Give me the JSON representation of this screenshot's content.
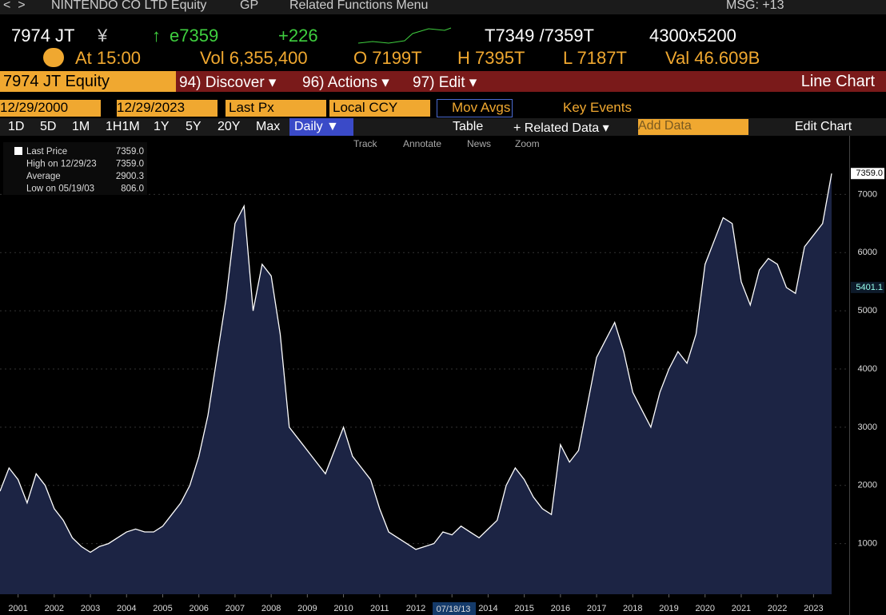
{
  "header": {
    "security": "NINTENDO CO LTD Equity",
    "function": "GP",
    "menu": "Related Functions Menu",
    "messages": "MSG: +13"
  },
  "quote": {
    "ticker": "7974 JT",
    "currency": "¥",
    "last": "e7359",
    "change": "+226",
    "bid_ask": "T7349 /7359T",
    "size": "4300x5200",
    "time": "At 15:00",
    "volume": "Vol 6,355,400",
    "open": "O 7199T",
    "high": "H 7395T",
    "low": "L 7187T",
    "value": "Val 46.609B"
  },
  "toolbar": {
    "equity": "7974 JT Equity",
    "discover": "94) Discover ▾",
    "actions": "96) Actions ▾",
    "edit": "97) Edit ▾",
    "chart_kind": "Line Chart",
    "start_date": "12/29/2000",
    "end_date": "12/29/2023",
    "field": "Last Px",
    "currency": "Local CCY",
    "mov_avgs": "Mov Avgs",
    "key_events": "Key Events",
    "periods": [
      "1D",
      "5D",
      "1M",
      "1H1M",
      "1Y",
      "5Y",
      "20Y",
      "Max"
    ],
    "frequency": "Daily ▼",
    "table": "Table",
    "related": "+ Related Data ▾",
    "add_data": "Add Data",
    "edit_chart": "Edit Chart",
    "tools": [
      "Track",
      "Annotate",
      "News",
      "Zoom"
    ]
  },
  "chart_data": {
    "type": "line",
    "legend_rows": [
      {
        "label": "Last Price",
        "value": "7359.0"
      },
      {
        "label": "High on 12/29/23",
        "value": "7359.0"
      },
      {
        "label": "Average",
        "value": "2900.3"
      },
      {
        "label": "Low on 05/19/03",
        "value": "806.0"
      }
    ],
    "x": [
      2001.0,
      2001.25,
      2001.5,
      2001.75,
      2002.0,
      2002.25,
      2002.5,
      2002.75,
      2003.0,
      2003.25,
      2003.5,
      2003.75,
      2004.0,
      2004.25,
      2004.5,
      2004.75,
      2005.0,
      2005.25,
      2005.5,
      2005.75,
      2006.0,
      2006.25,
      2006.5,
      2006.75,
      2007.0,
      2007.25,
      2007.5,
      2007.75,
      2008.0,
      2008.25,
      2008.5,
      2008.75,
      2009.0,
      2009.25,
      2009.5,
      2009.75,
      2010.0,
      2010.25,
      2010.5,
      2010.75,
      2011.0,
      2011.25,
      2011.5,
      2011.75,
      2012.0,
      2012.25,
      2012.5,
      2012.75,
      2013.0,
      2013.25,
      2013.5,
      2013.75,
      2014.0,
      2014.25,
      2014.5,
      2014.75,
      2015.0,
      2015.25,
      2015.5,
      2015.75,
      2016.0,
      2016.25,
      2016.5,
      2016.75,
      2017.0,
      2017.25,
      2017.5,
      2017.75,
      2018.0,
      2018.25,
      2018.5,
      2018.75,
      2019.0,
      2019.25,
      2019.5,
      2019.75,
      2020.0,
      2020.25,
      2020.5,
      2020.75,
      2021.0,
      2021.25,
      2021.5,
      2021.75,
      2022.0,
      2022.25,
      2022.5,
      2022.75,
      2023.0,
      2023.25,
      2023.5,
      2023.75,
      2024.0
    ],
    "series": [
      {
        "name": "Last Price",
        "color": "#ffffff",
        "fill": "#1c2444",
        "values": [
          1900,
          2300,
          2100,
          1700,
          2200,
          2000,
          1600,
          1400,
          1100,
          950,
          850,
          950,
          1000,
          1100,
          1200,
          1250,
          1200,
          1200,
          1300,
          1500,
          1700,
          2000,
          2500,
          3200,
          4200,
          5200,
          6500,
          6800,
          5000,
          5800,
          5600,
          4600,
          3000,
          2800,
          2600,
          2400,
          2200,
          2600,
          3000,
          2500,
          2300,
          2100,
          1600,
          1200,
          1100,
          1000,
          900,
          950,
          1000,
          1200,
          1150,
          1300,
          1200,
          1100,
          1250,
          1400,
          2000,
          2300,
          2100,
          1800,
          1600,
          1500,
          2700,
          2400,
          2600,
          3400,
          4200,
          4500,
          4800,
          4300,
          3600,
          3300,
          3000,
          3600,
          4000,
          4300,
          4100,
          4600,
          5800,
          6200,
          6600,
          6500,
          5500,
          5100,
          5700,
          5900,
          5800,
          5400,
          5300,
          6100,
          6300,
          6500,
          7359
        ]
      }
    ],
    "xlim": [
      2001,
      2024
    ],
    "xticks": [
      {
        "value": 2001.5,
        "label": "2001"
      },
      {
        "value": 2002.5,
        "label": "2002"
      },
      {
        "value": 2003.5,
        "label": "2003"
      },
      {
        "value": 2004.5,
        "label": "2004"
      },
      {
        "value": 2005.5,
        "label": "2005"
      },
      {
        "value": 2006.5,
        "label": "2006"
      },
      {
        "value": 2007.5,
        "label": "2007"
      },
      {
        "value": 2008.5,
        "label": "2008"
      },
      {
        "value": 2009.5,
        "label": "2009"
      },
      {
        "value": 2010.5,
        "label": "2010"
      },
      {
        "value": 2011.5,
        "label": "2011"
      },
      {
        "value": 2012.5,
        "label": "2012"
      },
      {
        "value": 2013.5,
        "label": "2013"
      },
      {
        "value": 2014.5,
        "label": "2014"
      },
      {
        "value": 2015.5,
        "label": "2015"
      },
      {
        "value": 2016.5,
        "label": "2016"
      },
      {
        "value": 2017.5,
        "label": "2017"
      },
      {
        "value": 2018.5,
        "label": "2018"
      },
      {
        "value": 2019.5,
        "label": "2019"
      },
      {
        "value": 2020.5,
        "label": "2020"
      },
      {
        "value": 2021.5,
        "label": "2021"
      },
      {
        "value": 2022.5,
        "label": "2022"
      },
      {
        "value": 2023.5,
        "label": "2023"
      }
    ],
    "cursor": {
      "value": 2013.54,
      "label": "07/18/13"
    },
    "ylim": [
      130,
      7980
    ],
    "yticks": [
      1000,
      2000,
      3000,
      4000,
      5000,
      6000,
      7000
    ],
    "grid": true,
    "axis_tags": [
      {
        "value": 7359,
        "label": "7359.0"
      },
      {
        "value": 5401.1,
        "label": "5401.1"
      }
    ]
  }
}
